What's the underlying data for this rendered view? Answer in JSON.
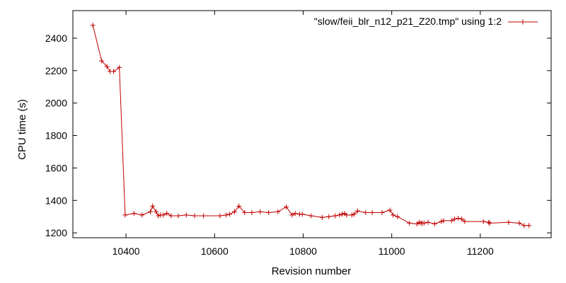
{
  "chart_data": {
    "type": "line",
    "title": "",
    "xlabel": "Revision number",
    "ylabel": "CPU time (s)",
    "xlim": [
      10280,
      11360
    ],
    "ylim": [
      1170,
      2570
    ],
    "xticks": [
      10400,
      10600,
      10800,
      11000,
      11200
    ],
    "yticks": [
      1200,
      1400,
      1600,
      1800,
      2000,
      2200,
      2400
    ],
    "grid": false,
    "legend_position": "top-right",
    "series": [
      {
        "name": "\"slow/feii_blr_n12_p21_Z20.tmp\" using 1:2",
        "color": "#c00000",
        "marker": "plus",
        "x": [
          10325,
          10345,
          10357,
          10364,
          10372,
          10385,
          10398,
          10418,
          10436,
          10455,
          10460,
          10468,
          10473,
          10478,
          10484,
          10492,
          10502,
          10518,
          10536,
          10555,
          10575,
          10612,
          10626,
          10634,
          10645,
          10655,
          10668,
          10684,
          10703,
          10722,
          10743,
          10762,
          10775,
          10782,
          10792,
          10798,
          10818,
          10843,
          10858,
          10872,
          10882,
          10888,
          10893,
          10898,
          10910,
          10915,
          10923,
          10941,
          10956,
          10978,
          10996,
          11003,
          11013,
          11040,
          11057,
          11062,
          11066,
          11069,
          11073,
          11082,
          11097,
          11112,
          11117,
          11135,
          11142,
          11150,
          11158,
          11165,
          11207,
          11219,
          11221,
          11264,
          11288,
          11299,
          11310
        ],
        "y": [
          2480,
          2260,
          2225,
          2195,
          2195,
          2220,
          1310,
          1320,
          1310,
          1330,
          1365,
          1330,
          1305,
          1310,
          1310,
          1320,
          1305,
          1305,
          1310,
          1305,
          1305,
          1305,
          1310,
          1315,
          1330,
          1365,
          1325,
          1325,
          1330,
          1325,
          1330,
          1360,
          1310,
          1320,
          1315,
          1315,
          1305,
          1295,
          1300,
          1305,
          1310,
          1315,
          1320,
          1310,
          1310,
          1315,
          1335,
          1325,
          1325,
          1325,
          1340,
          1310,
          1300,
          1260,
          1255,
          1265,
          1260,
          1260,
          1260,
          1265,
          1255,
          1270,
          1275,
          1275,
          1285,
          1290,
          1285,
          1270,
          1270,
          1265,
          1260,
          1265,
          1260,
          1245,
          1245
        ]
      }
    ]
  }
}
